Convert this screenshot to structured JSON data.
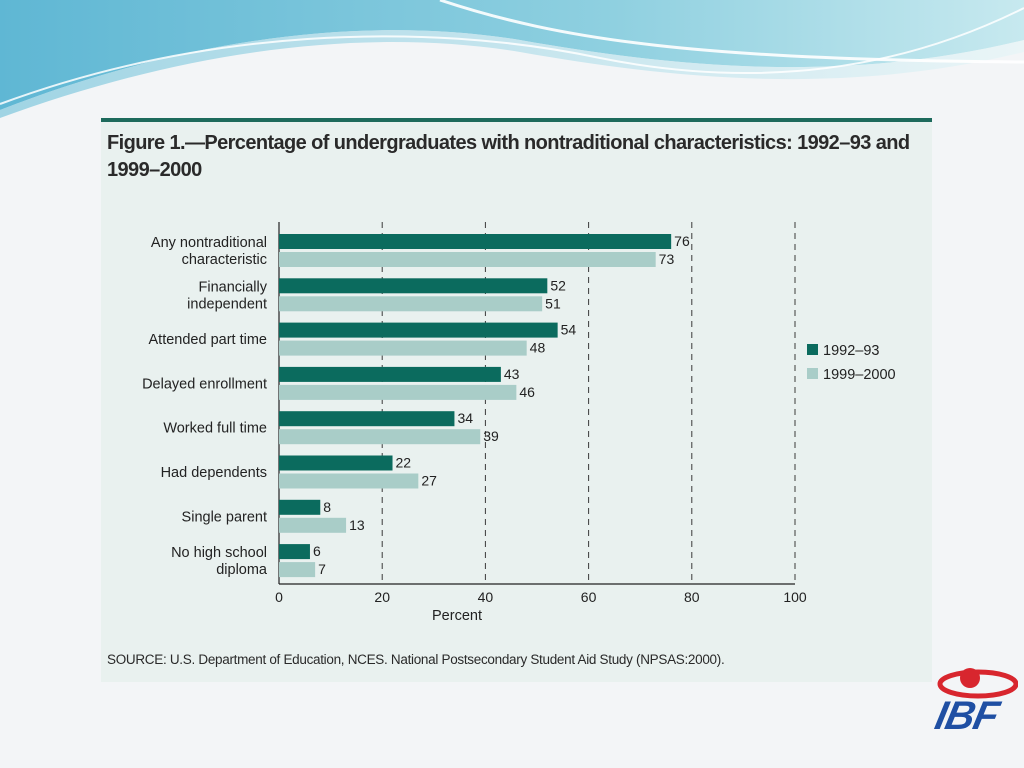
{
  "figure": {
    "title": "Figure 1.—Percentage of undergraduates with nontraditional characteristics: 1992–93 and 1999–2000",
    "source": "SOURCE: U.S. Department of Education, NCES. National Postsecondary Student Aid Study (NPSAS:2000)."
  },
  "logo": {
    "text": "IBF"
  },
  "colors": {
    "series_1992": "#0b6b5e",
    "series_1999": "#a9cdc8",
    "panel": "#e9f1ef",
    "accent": "#1d6a5c"
  },
  "chart_data": {
    "type": "bar",
    "orientation": "horizontal",
    "categories": [
      "Any nontraditional characteristic",
      "Financially independent",
      "Attended part time",
      "Delayed enrollment",
      "Worked full time",
      "Had dependents",
      "Single parent",
      "No high school diploma"
    ],
    "category_lines": [
      [
        "Any nontraditional",
        "characteristic"
      ],
      [
        "Financially",
        "independent"
      ],
      [
        "Attended part time"
      ],
      [
        "Delayed enrollment"
      ],
      [
        "Worked full time"
      ],
      [
        "Had dependents"
      ],
      [
        "Single parent"
      ],
      [
        "No high school",
        "diploma"
      ]
    ],
    "series": [
      {
        "name": "1992–93",
        "values": [
          76,
          52,
          54,
          43,
          34,
          22,
          8,
          6
        ]
      },
      {
        "name": "1999–2000",
        "values": [
          73,
          51,
          48,
          46,
          39,
          27,
          13,
          7
        ]
      }
    ],
    "xlabel": "Percent",
    "xlim": [
      0,
      100
    ],
    "xticks": [
      0,
      20,
      40,
      60,
      80,
      100
    ],
    "grid": "vertical dashed",
    "data_labels": true,
    "legend_position": "right"
  }
}
